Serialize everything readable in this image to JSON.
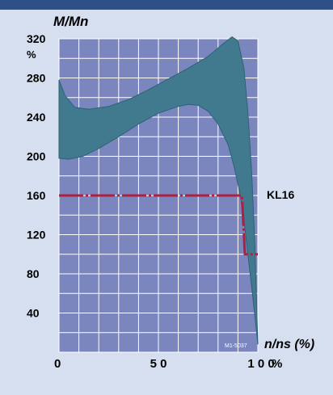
{
  "colors": {
    "page_bg": "#d5dff0",
    "plot_bg": "#7a86bd",
    "grid": "#ffffff",
    "band_fill": "#417a8e",
    "band_edge": "#2e6275",
    "kl16_line": "#b0203e",
    "header_bar": "#2f4f88"
  },
  "chart_data": {
    "type": "area",
    "ylabel": "M/Mn",
    "y_unit": "%",
    "xlabel": "n/ns (%)",
    "x_unit": "%",
    "xlim": [
      0,
      100
    ],
    "ylim": [
      0,
      320
    ],
    "grid": true,
    "x_ticks": [
      {
        "value": 0,
        "label": "0"
      },
      {
        "value": 50,
        "label": "5 0"
      },
      {
        "value": 100,
        "label": "1 0 0"
      }
    ],
    "y_ticks": [
      {
        "value": 40,
        "label": "40"
      },
      {
        "value": 80,
        "label": "80"
      },
      {
        "value": 120,
        "label": "120"
      },
      {
        "value": 160,
        "label": "160"
      },
      {
        "value": 200,
        "label": "200"
      },
      {
        "value": 240,
        "label": "240"
      },
      {
        "value": 280,
        "label": "280"
      },
      {
        "value": 320,
        "label": "320"
      }
    ],
    "series": [
      {
        "kind": "band",
        "upper": [
          [
            0,
            278
          ],
          [
            3,
            262
          ],
          [
            8,
            250
          ],
          [
            15,
            248
          ],
          [
            25,
            251
          ],
          [
            35,
            258
          ],
          [
            45,
            268
          ],
          [
            55,
            279
          ],
          [
            65,
            290
          ],
          [
            75,
            302
          ],
          [
            82,
            314
          ],
          [
            87,
            322
          ],
          [
            90,
            318
          ],
          [
            93,
            290
          ],
          [
            95,
            245
          ],
          [
            97,
            180
          ],
          [
            98.5,
            110
          ],
          [
            99.3,
            55
          ],
          [
            100,
            8
          ]
        ],
        "lower": [
          [
            0,
            198
          ],
          [
            5,
            197
          ],
          [
            12,
            200
          ],
          [
            20,
            208
          ],
          [
            30,
            220
          ],
          [
            40,
            233
          ],
          [
            50,
            244
          ],
          [
            60,
            251
          ],
          [
            65,
            253
          ],
          [
            70,
            252
          ],
          [
            75,
            246
          ],
          [
            80,
            233
          ],
          [
            85,
            212
          ],
          [
            88,
            190
          ],
          [
            91,
            162
          ],
          [
            93,
            135
          ],
          [
            95,
            100
          ],
          [
            97,
            65
          ],
          [
            99,
            28
          ],
          [
            100,
            8
          ]
        ]
      },
      {
        "kind": "line",
        "name": "KL16",
        "style": "dash-dot",
        "values": [
          [
            0,
            160
          ],
          [
            92,
            160
          ],
          [
            93.5,
            100
          ],
          [
            100,
            100
          ]
        ]
      }
    ],
    "annotations": [
      {
        "text": "KL16",
        "x": 100,
        "y": 160
      },
      {
        "text": "M1-5037",
        "x": 90,
        "y": 5
      }
    ]
  }
}
